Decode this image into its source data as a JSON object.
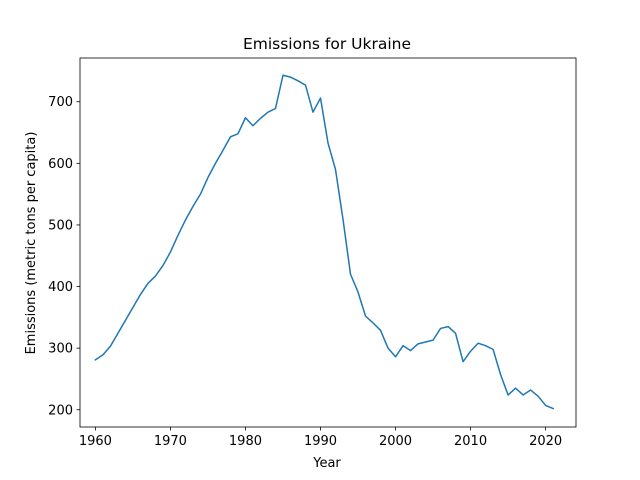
{
  "chart_data": {
    "type": "line",
    "title": "Emissions for Ukraine",
    "xlabel": "Year",
    "ylabel": "Emissions (metric tons per capita)",
    "xlim": [
      1957.95,
      2024.05
    ],
    "ylim": [
      172,
      771
    ],
    "xticks": [
      1960,
      1970,
      1980,
      1990,
      2000,
      2010,
      2020
    ],
    "yticks": [
      200,
      300,
      400,
      500,
      600,
      700
    ],
    "grid": false,
    "series": [
      {
        "color": "#1f77b4",
        "x": [
          1960,
          1961,
          1962,
          1963,
          1964,
          1965,
          1966,
          1967,
          1968,
          1969,
          1970,
          1971,
          1972,
          1973,
          1974,
          1975,
          1976,
          1977,
          1978,
          1979,
          1980,
          1981,
          1982,
          1983,
          1984,
          1985,
          1986,
          1987,
          1988,
          1989,
          1990,
          1991,
          1992,
          1993,
          1994,
          1995,
          1996,
          1997,
          1998,
          1999,
          2000,
          2001,
          2002,
          2003,
          2004,
          2005,
          2006,
          2007,
          2008,
          2009,
          2010,
          2011,
          2012,
          2013,
          2014,
          2015,
          2016,
          2017,
          2018,
          2019,
          2020,
          2021
        ],
        "y": [
          281,
          289,
          303,
          324,
          345,
          366,
          387,
          405,
          417,
          434,
          456,
          483,
          508,
          530,
          550,
          577,
          600,
          621,
          643,
          648,
          674,
          661,
          673,
          683,
          689,
          743,
          740,
          734,
          727,
          683,
          706,
          633,
          590,
          509,
          420,
          391,
          352,
          341,
          329,
          300,
          286,
          304,
          296,
          307,
          310,
          313,
          332,
          335,
          324,
          278,
          295,
          308,
          304,
          298,
          257,
          224,
          235,
          224,
          232,
          222,
          207,
          202
        ]
      }
    ]
  }
}
